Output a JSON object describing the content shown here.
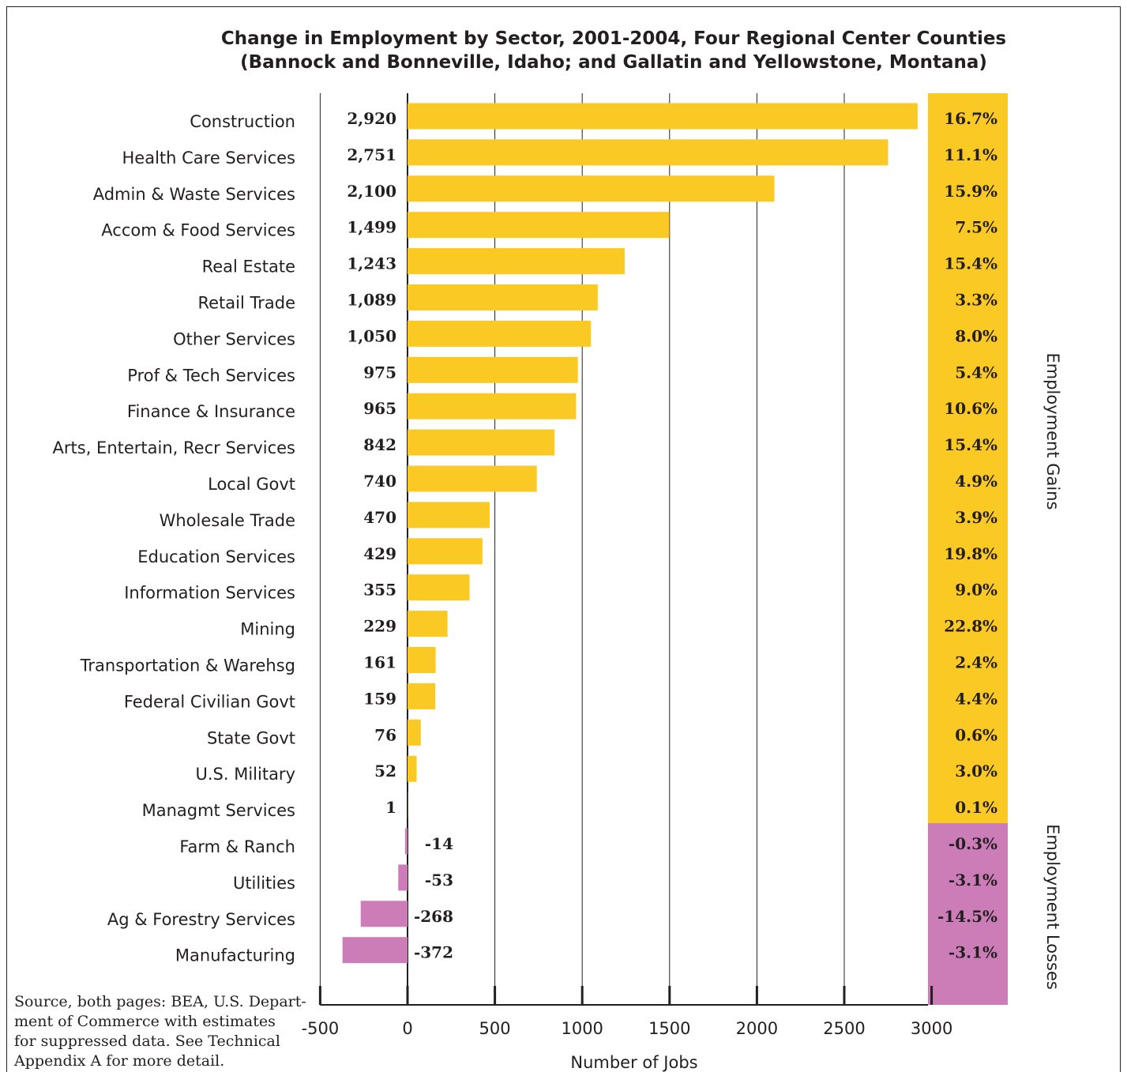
{
  "chart_data": {
    "type": "bar",
    "orientation": "horizontal",
    "title": "Change in Employment by Sector, 2001-2004, Four Regional Center Counties",
    "subtitle": "(Bannock and Bonneville, Idaho; and Gallatin and Yellowstone, Montana)",
    "xlabel": "Number of Jobs",
    "ylabel": "",
    "xlim": [
      -500,
      3000
    ],
    "x_ticks": [
      "-500",
      "0",
      "500",
      "1000",
      "1500",
      "2000",
      "2500",
      "3000"
    ],
    "grid": "vertical",
    "categories": [
      "Construction",
      "Health Care Services",
      "Admin & Waste Services",
      "Accom & Food Services",
      "Real Estate",
      "Retail Trade",
      "Other Services",
      "Prof & Tech Services",
      "Finance & Insurance",
      "Arts, Entertain, Recr Services",
      "Local Govt",
      "Wholesale Trade",
      "Education Services",
      "Information Services",
      "Mining",
      "Transportation & Warehsg",
      "Federal Civilian Govt",
      "State Govt",
      "U.S. Military",
      "Managmt Services",
      "Farm & Ranch",
      "Utilities",
      "Ag & Forestry Services",
      "Manufacturing"
    ],
    "values": [
      2920,
      2751,
      2100,
      1499,
      1243,
      1089,
      1050,
      975,
      965,
      842,
      740,
      470,
      429,
      355,
      229,
      161,
      159,
      76,
      52,
      1,
      -14,
      -53,
      -268,
      -372
    ],
    "value_labels": [
      "2,920",
      "2,751",
      "2,100",
      "1,499",
      "1,243",
      "1,089",
      "1,050",
      "975",
      "965",
      "842",
      "740",
      "470",
      "429",
      "355",
      "229",
      "161",
      "159",
      "76",
      "52",
      "1",
      "-14",
      "-53",
      "-268",
      "-372"
    ],
    "percent_change": [
      "16.7%",
      "11.1%",
      "15.9%",
      "7.5%",
      "15.4%",
      "3.3%",
      "8.0%",
      "5.4%",
      "10.6%",
      "15.4%",
      "4.9%",
      "3.9%",
      "19.8%",
      "9.0%",
      "22.8%",
      "2.4%",
      "4.4%",
      "0.6%",
      "3.0%",
      "0.1%",
      "-0.3%",
      "-3.1%",
      "-14.5%",
      "-3.1%"
    ],
    "group_labels": {
      "gains": "Employment Gains",
      "losses": "Employment Losses"
    },
    "colors": {
      "gain": "#FBC923",
      "loss": "#CC7DB8",
      "text": "#231F20"
    }
  },
  "source_note": [
    "Source, both pages: BEA, U.S. Depart-",
    "ment of Commerce with estimates",
    "for suppressed data. See Technical",
    "Appendix A for more detail."
  ]
}
